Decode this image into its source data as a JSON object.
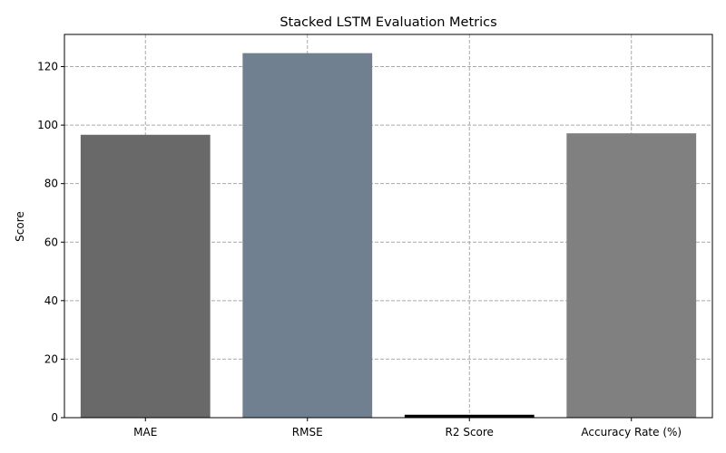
{
  "chart_data": {
    "type": "bar",
    "title": "Stacked LSTM Evaluation Metrics",
    "xlabel": "",
    "ylabel": "Score",
    "categories": [
      "MAE",
      "RMSE",
      "R2 Score",
      "Accuracy Rate (%)"
    ],
    "values": [
      96.7,
      124.6,
      1.0,
      97.2
    ],
    "colors": [
      "#696969",
      "#708090",
      "#000000",
      "#808080"
    ],
    "ylim": [
      0,
      131
    ],
    "yticks": [
      0,
      20,
      40,
      60,
      80,
      100,
      120
    ],
    "grid": true,
    "grid_style": "dashed",
    "grid_color": "#a9a9a9"
  }
}
